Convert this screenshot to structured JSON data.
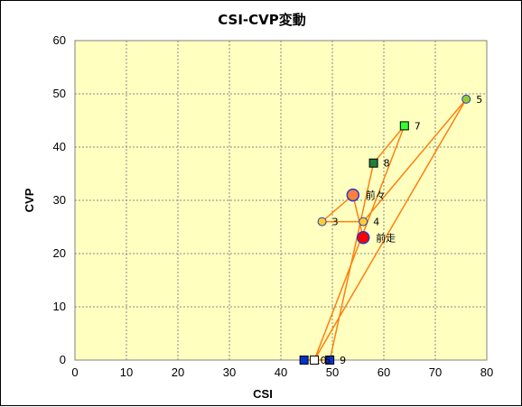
{
  "chart_data": {
    "type": "scatter",
    "title": "CSI-CVP変動",
    "xlabel": "CSI",
    "ylabel": "CVP",
    "xlim": [
      0,
      80
    ],
    "ylim": [
      0,
      60
    ],
    "x_ticks": [
      "0",
      "10",
      "20",
      "30",
      "40",
      "50",
      "60",
      "70",
      "80"
    ],
    "y_ticks": [
      "0",
      "10",
      "20",
      "30",
      "40",
      "50",
      "60"
    ],
    "grid": true,
    "plot_background": "#ffffc0",
    "line_color": "#ff7f0e",
    "path_order": [
      "10",
      "9",
      "8",
      "7",
      "6",
      "5",
      "4",
      "3",
      "前々",
      "前走"
    ],
    "points": [
      {
        "label": "10",
        "x": 44.5,
        "y": 0,
        "marker": "square",
        "fill": "#0033cc"
      },
      {
        "label": "9",
        "x": 49.5,
        "y": 0,
        "marker": "square",
        "fill": "#0033cc"
      },
      {
        "label": "8",
        "x": 58,
        "y": 37,
        "marker": "square",
        "fill": "#1f7f3f"
      },
      {
        "label": "7",
        "x": 64,
        "y": 44,
        "marker": "square",
        "fill": "#33ff33"
      },
      {
        "label": "6",
        "x": 46.5,
        "y": 0,
        "marker": "square",
        "fill": "#ffffff"
      },
      {
        "label": "5",
        "x": 76,
        "y": 49,
        "marker": "circle",
        "fill": "#99cc33"
      },
      {
        "label": "4",
        "x": 56,
        "y": 26,
        "marker": "circle",
        "fill": "#ffcc33"
      },
      {
        "label": "3",
        "x": 48,
        "y": 26,
        "marker": "circle",
        "fill": "#ffcc33"
      },
      {
        "label": "前々",
        "x": 54,
        "y": 31,
        "marker": "circle-large",
        "fill": "#ff7f3f"
      },
      {
        "label": "前走",
        "x": 56,
        "y": 23,
        "marker": "circle-large",
        "fill": "#ff0000"
      }
    ]
  }
}
